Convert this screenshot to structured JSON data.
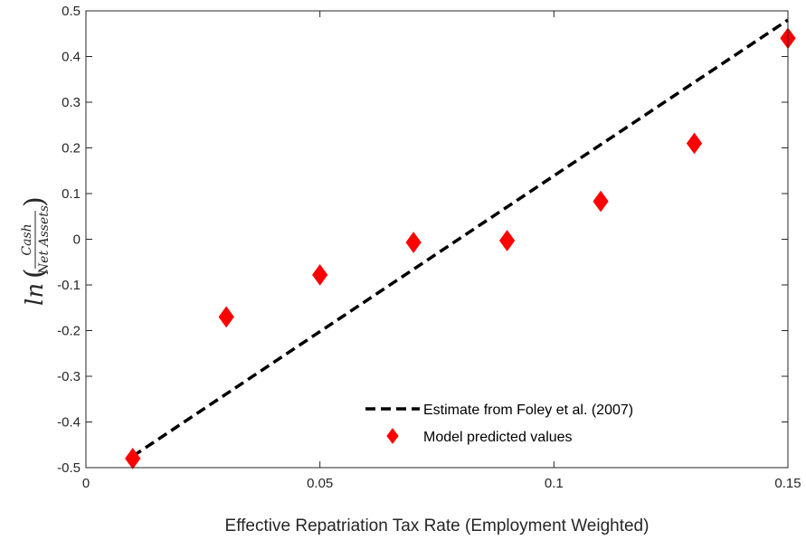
{
  "chart_data": {
    "type": "scatter",
    "xlabel": "Effective Repatriation Tax Rate (Employment Weighted)",
    "ylabel": {
      "prefix": "ln",
      "numerator": "Cash",
      "denominator": "Net Assets"
    },
    "xlim": [
      0,
      0.15
    ],
    "ylim": [
      -0.5,
      0.5
    ],
    "xticks": [
      0,
      0.05,
      0.1,
      0.15
    ],
    "xtick_labels": [
      "0",
      "0.05",
      "0.1",
      "0.15"
    ],
    "yticks": [
      -0.5,
      -0.4,
      -0.3,
      -0.2,
      -0.1,
      0,
      0.1,
      0.2,
      0.3,
      0.4,
      0.5
    ],
    "ytick_labels": [
      "-0.5",
      "-0.4",
      "-0.3",
      "-0.2",
      "-0.1",
      "0",
      "0.1",
      "0.2",
      "0.3",
      "0.4",
      "0.5"
    ],
    "grid": false,
    "legend_position": "bottom-right",
    "series": [
      {
        "name": "Estimate from Foley et al. (2007)",
        "kind": "line",
        "style": "dashed",
        "color": "#000000",
        "x": [
          0.01,
          0.15
        ],
        "y": [
          -0.475,
          0.48
        ]
      },
      {
        "name": "Model predicted values",
        "kind": "scatter",
        "marker": "diamond",
        "color": "#ff0000",
        "x": [
          0.01,
          0.03,
          0.05,
          0.07,
          0.09,
          0.11,
          0.13,
          0.15
        ],
        "y": [
          -0.48,
          -0.17,
          -0.078,
          -0.007,
          -0.003,
          0.083,
          0.21,
          0.44
        ]
      }
    ]
  }
}
